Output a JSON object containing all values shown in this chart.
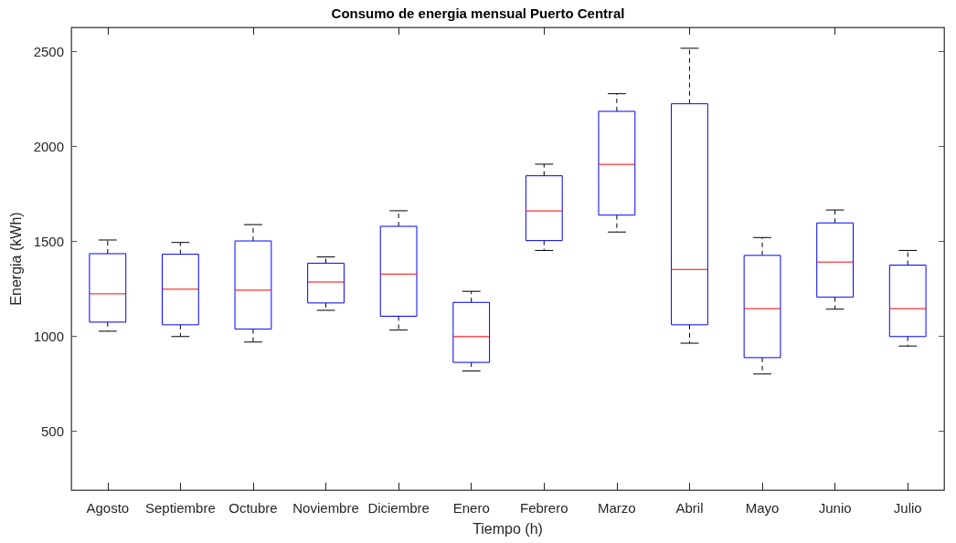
{
  "chart_data": {
    "type": "box",
    "title": "Consumo de energia mensual Puerto Central",
    "xlabel": "Tiempo (h)",
    "ylabel": "Energia (kWh)",
    "categories": [
      "Agosto",
      "Septiembre",
      "Octubre",
      "Noviembre",
      "Diciembre",
      "Enero",
      "Febrero",
      "Marzo",
      "Abril",
      "Mayo",
      "Junio",
      "Julio"
    ],
    "series": [
      {
        "color": "#0000ff",
        "boxes": [
          {
            "low": 1026,
            "q1": 1074,
            "median": 1223,
            "q3": 1434,
            "high": 1506
          },
          {
            "low": 998,
            "q1": 1060,
            "median": 1247,
            "q3": 1431,
            "high": 1493
          },
          {
            "low": 969,
            "q1": 1037,
            "median": 1242,
            "q3": 1501,
            "high": 1587
          },
          {
            "low": 1136,
            "q1": 1175,
            "median": 1285,
            "q3": 1384,
            "high": 1417
          },
          {
            "low": 1032,
            "q1": 1105,
            "median": 1327,
            "q3": 1578,
            "high": 1660
          },
          {
            "low": 817,
            "q1": 862,
            "median": 998,
            "q3": 1178,
            "high": 1236
          },
          {
            "low": 1451,
            "q1": 1503,
            "median": 1659,
            "q3": 1844,
            "high": 1905
          },
          {
            "low": 1548,
            "q1": 1637,
            "median": 1904,
            "q3": 2183,
            "high": 2276
          },
          {
            "low": 963,
            "q1": 1060,
            "median": 1351,
            "q3": 2223,
            "high": 2515
          },
          {
            "low": 801,
            "q1": 887,
            "median": 1145,
            "q3": 1425,
            "high": 1519
          },
          {
            "low": 1142,
            "q1": 1205,
            "median": 1390,
            "q3": 1596,
            "high": 1664
          },
          {
            "low": 948,
            "q1": 998,
            "median": 1145,
            "q3": 1374,
            "high": 1451
          }
        ]
      }
    ],
    "ylim": [
      190,
      2625
    ],
    "yticks": [
      500,
      1000,
      1500,
      2000,
      2500
    ],
    "grid": false,
    "line_style": "dashed"
  }
}
